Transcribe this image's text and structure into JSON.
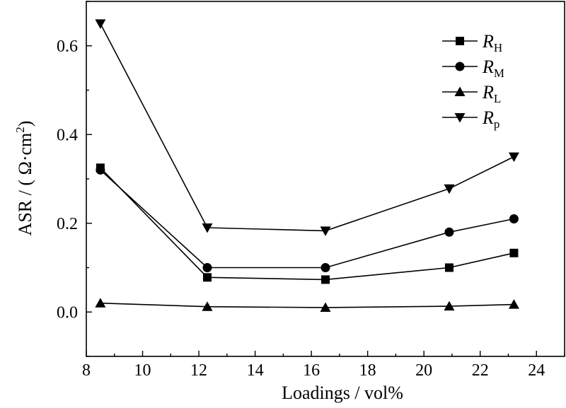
{
  "chart_data": {
    "type": "line",
    "xlabel": "Loadings / vol%",
    "ylabel": "ASR / ( Ω·cm",
    "ylabel_sup": "2",
    "ylabel_end": ")",
    "xlim": [
      8,
      25
    ],
    "ylim": [
      -0.1,
      0.7
    ],
    "xticks": [
      8,
      10,
      12,
      14,
      16,
      18,
      20,
      22,
      24
    ],
    "yticks": [
      0.0,
      0.2,
      0.4,
      0.6
    ],
    "ytick_labels": [
      "0.0",
      "0.2",
      "0.4",
      "0.6"
    ],
    "x": [
      8.5,
      12.3,
      16.5,
      20.9,
      23.2
    ],
    "grid": false,
    "legend_position": "top-right",
    "series": [
      {
        "name": "R",
        "sub": "H",
        "marker": "square",
        "values": [
          0.325,
          0.078,
          0.073,
          0.1,
          0.133
        ]
      },
      {
        "name": "R",
        "sub": "M",
        "marker": "circle",
        "values": [
          0.32,
          0.1,
          0.1,
          0.18,
          0.21
        ]
      },
      {
        "name": "R",
        "sub": "L",
        "marker": "triangle-up",
        "values": [
          0.02,
          0.012,
          0.01,
          0.013,
          0.017
        ]
      },
      {
        "name": "R",
        "sub": "p",
        "marker": "triangle-down",
        "values": [
          0.65,
          0.19,
          0.183,
          0.278,
          0.35
        ]
      }
    ]
  }
}
